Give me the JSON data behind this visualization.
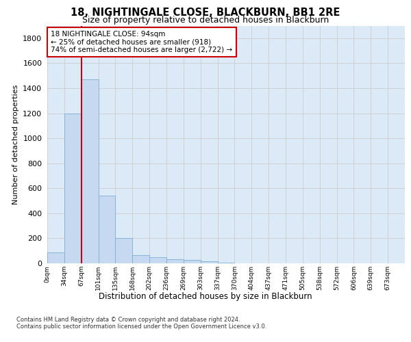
{
  "title": "18, NIGHTINGALE CLOSE, BLACKBURN, BB1 2RE",
  "subtitle": "Size of property relative to detached houses in Blackburn",
  "xlabel": "Distribution of detached houses by size in Blackburn",
  "ylabel": "Number of detached properties",
  "bin_labels": [
    "0sqm",
    "34sqm",
    "67sqm",
    "101sqm",
    "135sqm",
    "168sqm",
    "202sqm",
    "236sqm",
    "269sqm",
    "303sqm",
    "337sqm",
    "370sqm",
    "404sqm",
    "437sqm",
    "471sqm",
    "505sqm",
    "538sqm",
    "572sqm",
    "606sqm",
    "639sqm",
    "673sqm"
  ],
  "bar_values": [
    90,
    1200,
    1470,
    540,
    205,
    65,
    47,
    35,
    28,
    15,
    8,
    0,
    0,
    0,
    0,
    0,
    0,
    0,
    0,
    0,
    0
  ],
  "bar_color": "#c6d9f0",
  "bar_edgecolor": "#7bafd4",
  "vline_x": 2.0,
  "vline_color": "#cc0000",
  "annotation_text": "18 NIGHTINGALE CLOSE: 94sqm\n← 25% of detached houses are smaller (918)\n74% of semi-detached houses are larger (2,722) →",
  "annotation_box_color": "#cc0000",
  "ylim": [
    0,
    1900
  ],
  "yticks": [
    0,
    200,
    400,
    600,
    800,
    1000,
    1200,
    1400,
    1600,
    1800
  ],
  "grid_color": "#cccccc",
  "background_color": "#dce9f7",
  "footer_line1": "Contains HM Land Registry data © Crown copyright and database right 2024.",
  "footer_line2": "Contains public sector information licensed under the Open Government Licence v3.0."
}
